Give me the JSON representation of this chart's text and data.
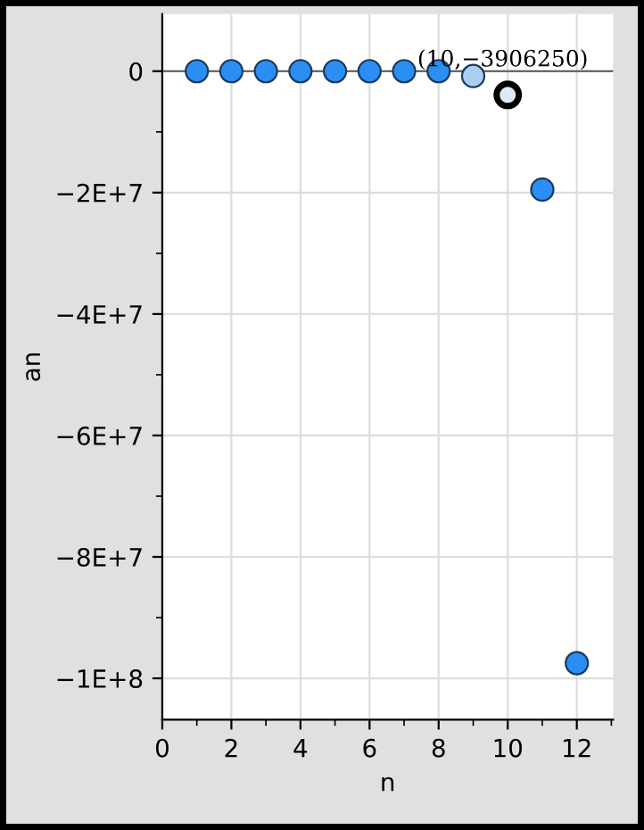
{
  "chart_data": {
    "type": "scatter",
    "xlabel": "n",
    "ylabel": "an",
    "x": [
      1,
      2,
      3,
      4,
      5,
      6,
      7,
      8,
      9,
      10,
      11,
      12
    ],
    "series": [
      {
        "values": [
          0,
          0,
          0,
          0,
          0,
          0,
          0,
          0,
          -800000,
          -3906250,
          -19500000,
          -97500000
        ],
        "colors": [
          "#2b8ef2",
          "#2b8ef2",
          "#2b8ef2",
          "#2b8ef2",
          "#2b8ef2",
          "#2b8ef2",
          "#2b8ef2",
          "#2b8ef2",
          "#a9cff5",
          "#dce9f7",
          "#2b8ef2",
          "#2b8ef2"
        ]
      }
    ],
    "xlim": [
      0,
      13.05
    ],
    "ylim": [
      -106800000,
      9400000
    ],
    "xticks": [
      0,
      {
        "value": 1,
        "label": null
      },
      2,
      {
        "value": 3,
        "label": null
      },
      4,
      {
        "value": 5,
        "label": null
      },
      6,
      {
        "value": 7,
        "label": null
      },
      8,
      {
        "value": 9,
        "label": null
      },
      10,
      {
        "value": 11,
        "label": null
      },
      12,
      {
        "value": 13,
        "label": null
      }
    ],
    "yticks": [
      {
        "value": 0,
        "label": "0"
      },
      {
        "value": -10000000,
        "label": null
      },
      {
        "value": -20000000,
        "label": "−2E+7"
      },
      {
        "value": -30000000,
        "label": null
      },
      {
        "value": -40000000,
        "label": "−4E+7"
      },
      {
        "value": -50000000,
        "label": null
      },
      {
        "value": -60000000,
        "label": "−6E+7"
      },
      {
        "value": -70000000,
        "label": null
      },
      {
        "value": -80000000,
        "label": "−8E+7"
      },
      {
        "value": -90000000,
        "label": null
      },
      {
        "value": -100000000,
        "label": "−1E+8"
      }
    ],
    "annotations": [
      {
        "text": "(10,−3906250)",
        "x": 10,
        "y": -3906250
      }
    ],
    "grid": true,
    "marker": "circle",
    "legend": false
  }
}
